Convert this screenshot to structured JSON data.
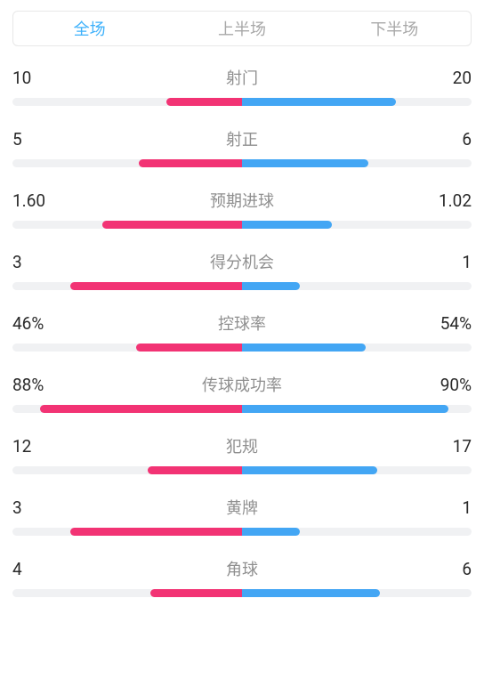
{
  "tabs": {
    "items": [
      {
        "label": "全场",
        "active": true
      },
      {
        "label": "上半场",
        "active": false
      },
      {
        "label": "下半场",
        "active": false
      }
    ]
  },
  "colors": {
    "left_bar": "#f23374",
    "right_bar": "#43a6f4",
    "bar_bg": "#f0f1f3",
    "tab_active": "#3eb1fb",
    "tab_inactive": "#a8a8a8",
    "value_text": "#2a2a2a",
    "label_text": "#8f8f8f",
    "background": "#ffffff"
  },
  "stats": [
    {
      "label": "射门",
      "left_value": "10",
      "right_value": "20",
      "left_pct": 33,
      "right_pct": 67
    },
    {
      "label": "射正",
      "left_value": "5",
      "right_value": "6",
      "left_pct": 45,
      "right_pct": 55
    },
    {
      "label": "预期进球",
      "left_value": "1.60",
      "right_value": "1.02",
      "left_pct": 61,
      "right_pct": 39
    },
    {
      "label": "得分机会",
      "left_value": "3",
      "right_value": "1",
      "left_pct": 75,
      "right_pct": 25
    },
    {
      "label": "控球率",
      "left_value": "46%",
      "right_value": "54%",
      "left_pct": 46,
      "right_pct": 54
    },
    {
      "label": "传球成功率",
      "left_value": "88%",
      "right_value": "90%",
      "left_pct": 88,
      "right_pct": 90
    },
    {
      "label": "犯规",
      "left_value": "12",
      "right_value": "17",
      "left_pct": 41,
      "right_pct": 59
    },
    {
      "label": "黄牌",
      "left_value": "3",
      "right_value": "1",
      "left_pct": 75,
      "right_pct": 25
    },
    {
      "label": "角球",
      "left_value": "4",
      "right_value": "6",
      "left_pct": 40,
      "right_pct": 60
    }
  ]
}
